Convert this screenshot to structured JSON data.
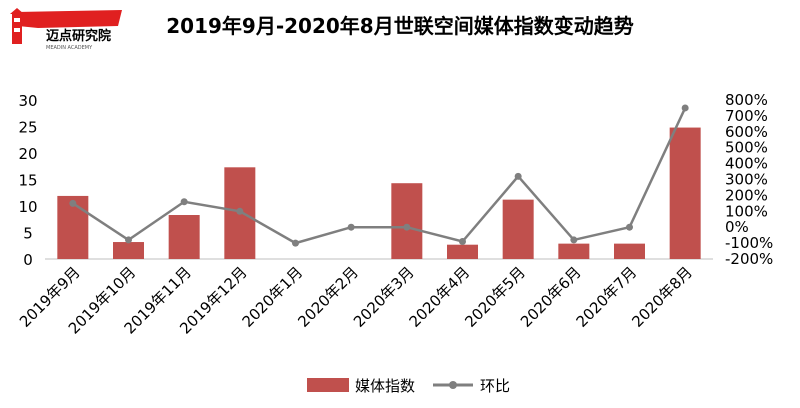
{
  "logo": {
    "text": "迈点研究院",
    "subtext": "MEADIN ACADEMY"
  },
  "colors": {
    "bar": "#c0504d",
    "line": "#7f7f7f",
    "logo_red": "#e02020"
  },
  "chart_data": {
    "type": "bar",
    "title": "2019年9月-2020年8月世联空间媒体指数变动趋势",
    "categories": [
      "2019年9月",
      "2019年10月",
      "2019年11月",
      "2019年12月",
      "2020年1月",
      "2020年2月",
      "2020年3月",
      "2020年4月",
      "2020年5月",
      "2020年6月",
      "2020年7月",
      "2020年8月"
    ],
    "series": [
      {
        "name": "媒体指数",
        "type": "bar",
        "axis": "left",
        "values": [
          11.9,
          3.2,
          8.3,
          17.3,
          0,
          0,
          14.3,
          2.7,
          11.2,
          2.9,
          2.9,
          24.8
        ]
      },
      {
        "name": "环比",
        "type": "line",
        "axis": "right",
        "unit": "%",
        "values": [
          150,
          -80,
          160,
          100,
          -100,
          0,
          0,
          -90,
          320,
          -80,
          0,
          750
        ]
      }
    ],
    "left_axis": {
      "min": 0,
      "max": 30,
      "ticks": [
        "0",
        "5",
        "10",
        "15",
        "20",
        "25",
        "30"
      ]
    },
    "right_axis": {
      "min": -200,
      "max": 800,
      "ticks": [
        "-200%",
        "-100%",
        "0%",
        "100%",
        "200%",
        "300%",
        "400%",
        "500%",
        "600%",
        "700%",
        "800%"
      ]
    },
    "legend_position": "bottom",
    "grid": false
  }
}
